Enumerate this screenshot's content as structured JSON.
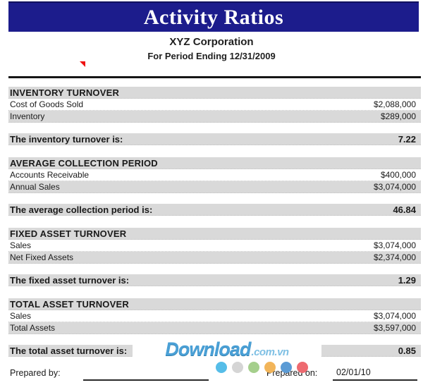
{
  "header": {
    "title": "Activity Ratios",
    "company": "XYZ Corporation",
    "period": "For Period Ending 12/31/2009"
  },
  "colors": {
    "banner_bg": "#1c1c8c",
    "band_gray": "#d9d9d9",
    "rule_black": "#161616",
    "red_mark": "#ee1111",
    "watermark_brand": "#4aa0d6",
    "watermark_suffix": "#7fc0e4"
  },
  "sections": [
    {
      "title": "INVENTORY TURNOVER",
      "rows": [
        {
          "label": "Cost of Goods Sold",
          "value": "$2,088,000"
        },
        {
          "label": "Inventory",
          "value": "$289,000"
        }
      ],
      "result_label": "The inventory turnover is:",
      "result_value": "7.22"
    },
    {
      "title": "AVERAGE COLLECTION PERIOD",
      "rows": [
        {
          "label": "Accounts Receivable",
          "value": "$400,000"
        },
        {
          "label": "Annual Sales",
          "value": "$3,074,000"
        }
      ],
      "result_label": "The average collection period is:",
      "result_value": "46.84"
    },
    {
      "title": "FIXED ASSET TURNOVER",
      "rows": [
        {
          "label": "Sales",
          "value": "$3,074,000"
        },
        {
          "label": "Net Fixed Assets",
          "value": "$2,374,000"
        }
      ],
      "result_label": "The fixed asset turnover is:",
      "result_value": "1.29"
    },
    {
      "title": "TOTAL ASSET TURNOVER",
      "rows": [
        {
          "label": "Sales",
          "value": "$3,074,000"
        },
        {
          "label": "Total Assets",
          "value": "$3,597,000"
        }
      ],
      "result_label": "The total asset turnover is:",
      "result_value": "0.85"
    }
  ],
  "footer": {
    "prepared_by_label": "Prepared by:",
    "prepared_on_label": "Prepared on:",
    "prepared_on_value": "02/01/10"
  },
  "watermark": {
    "brand": "Download",
    "suffix": ".com.vn",
    "dot_colors": [
      "#56bde8",
      "#d5d5d5",
      "#a5cf8c",
      "#f2b55a",
      "#5b9bd5",
      "#ee6a70"
    ],
    "dot_lefts": [
      306,
      329,
      352,
      375,
      398,
      421
    ]
  }
}
